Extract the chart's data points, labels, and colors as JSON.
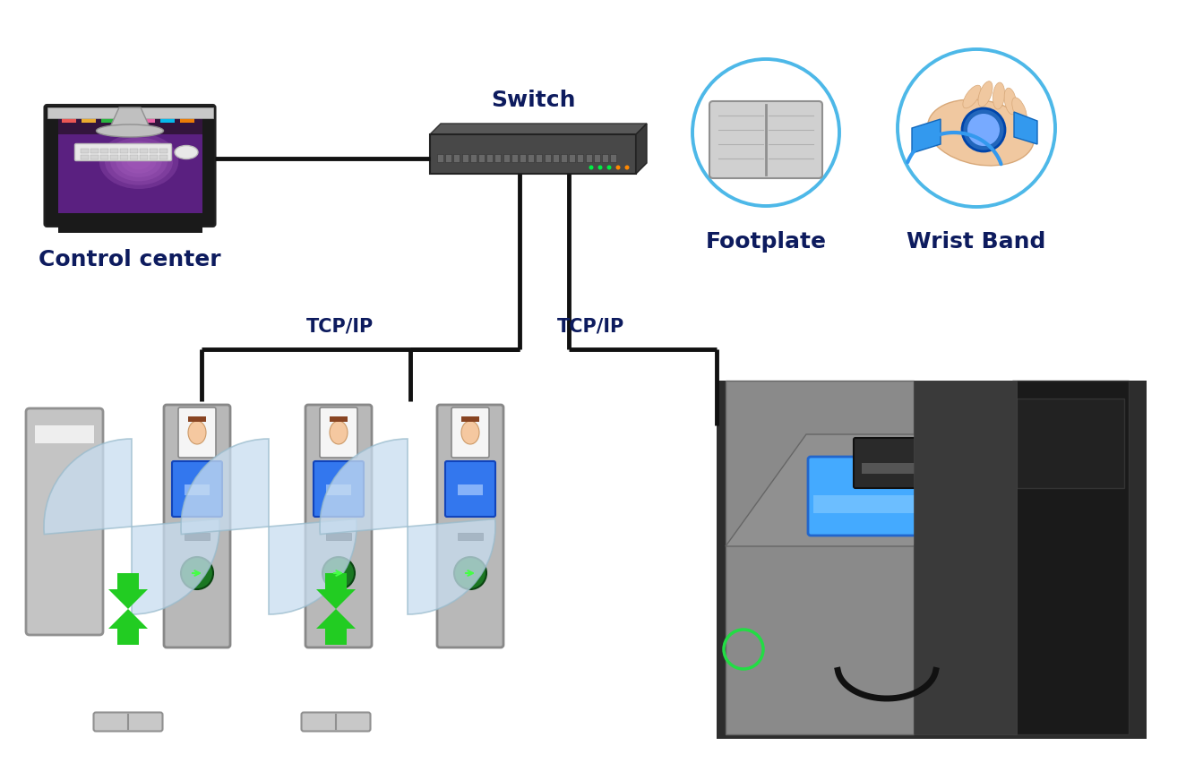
{
  "background_color": "#ffffff",
  "text_color": "#0d1b5e",
  "label_fontsize": 18,
  "connection_color": "#111111",
  "connection_lw": 3.5,
  "tcp_ip_label": "TCP/IP",
  "tcp_ip_fontsize": 15,
  "labels": {
    "control_center": "Control center",
    "switch": "Switch",
    "footplate": "Footplate",
    "wrist_band": "Wrist Band"
  },
  "circle_color": "#4db8e8",
  "circle_lw": 2.8,
  "arrow_color": "#22cc22",
  "gate_panel": "#b0b0b0",
  "gate_dark": "#808080",
  "gate_screen_color": "#4488ff",
  "blade_color_fill": "#c8ddf0",
  "blade_color_edge": "#99bbcc"
}
